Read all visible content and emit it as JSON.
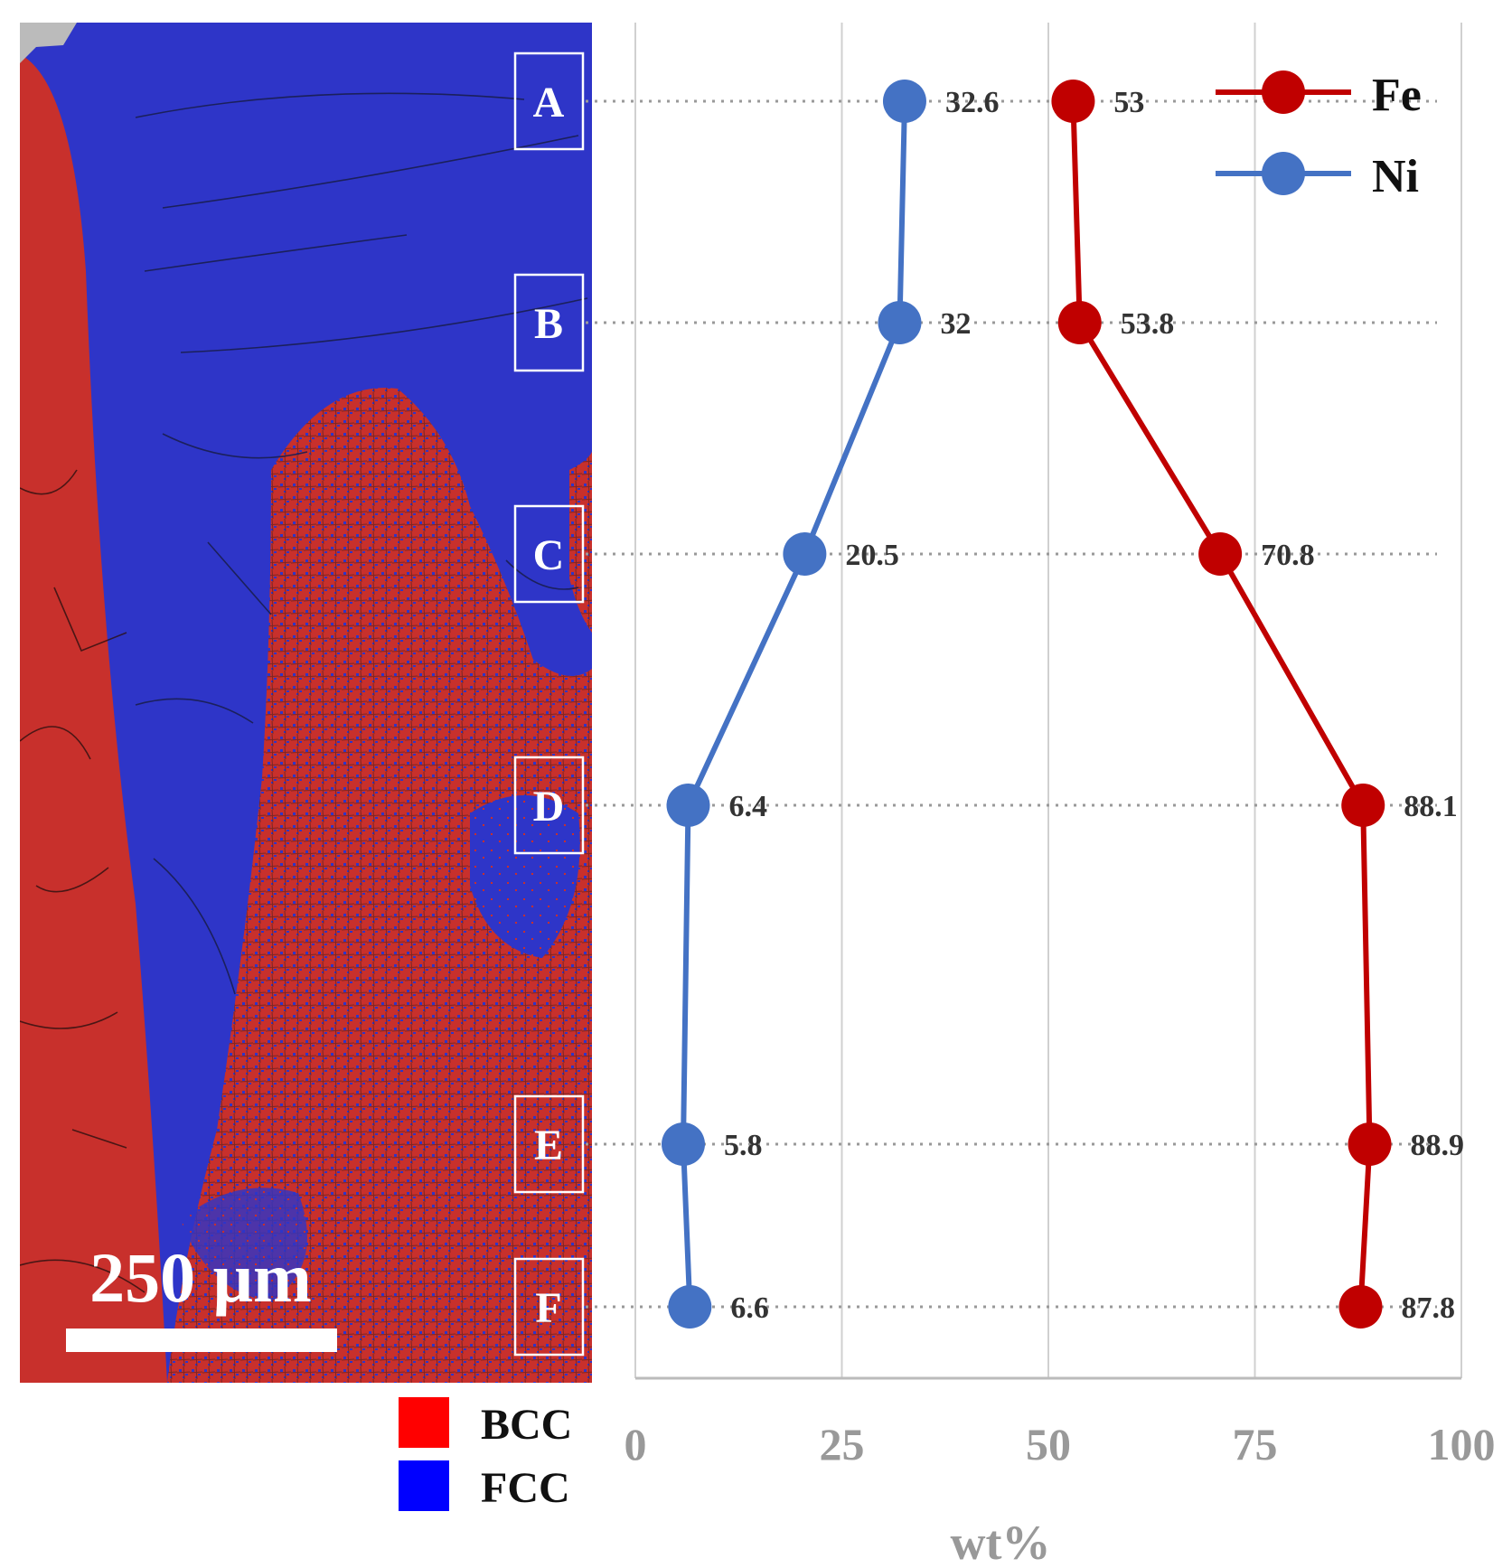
{
  "chart_data": {
    "type": "line",
    "orientation": "horizontal-values",
    "positions": [
      "A",
      "B",
      "C",
      "D",
      "E",
      "F"
    ],
    "series": [
      {
        "name": "Fe",
        "color": "#c00000",
        "values": [
          53,
          53.8,
          70.8,
          88.1,
          88.9,
          87.8
        ],
        "labels": [
          "53",
          "53.8",
          "70.8",
          "88.1",
          "88.9",
          "87.8"
        ]
      },
      {
        "name": "Ni",
        "color": "#4472c4",
        "values": [
          32.6,
          32,
          20.5,
          6.4,
          5.8,
          6.6
        ],
        "labels": [
          "32.6",
          "32",
          "20.5",
          "6.4",
          "5.8",
          "6.6"
        ]
      }
    ],
    "xlabel": "wt%",
    "xlim": [
      0,
      100
    ],
    "xticks": [
      "0",
      "25",
      "50",
      "75",
      "100"
    ],
    "grid": true,
    "legend_position": "top-right"
  },
  "micrograph": {
    "scale_bar_label": "250 μm",
    "phase_legend": [
      {
        "label": "BCC",
        "color": "#ff0000"
      },
      {
        "label": "FCC",
        "color": "#0000ff"
      }
    ],
    "colors": {
      "bcc_region": "#c8302c",
      "fcc_region": "#2e35c8",
      "gray": "#bbbbbb"
    }
  }
}
